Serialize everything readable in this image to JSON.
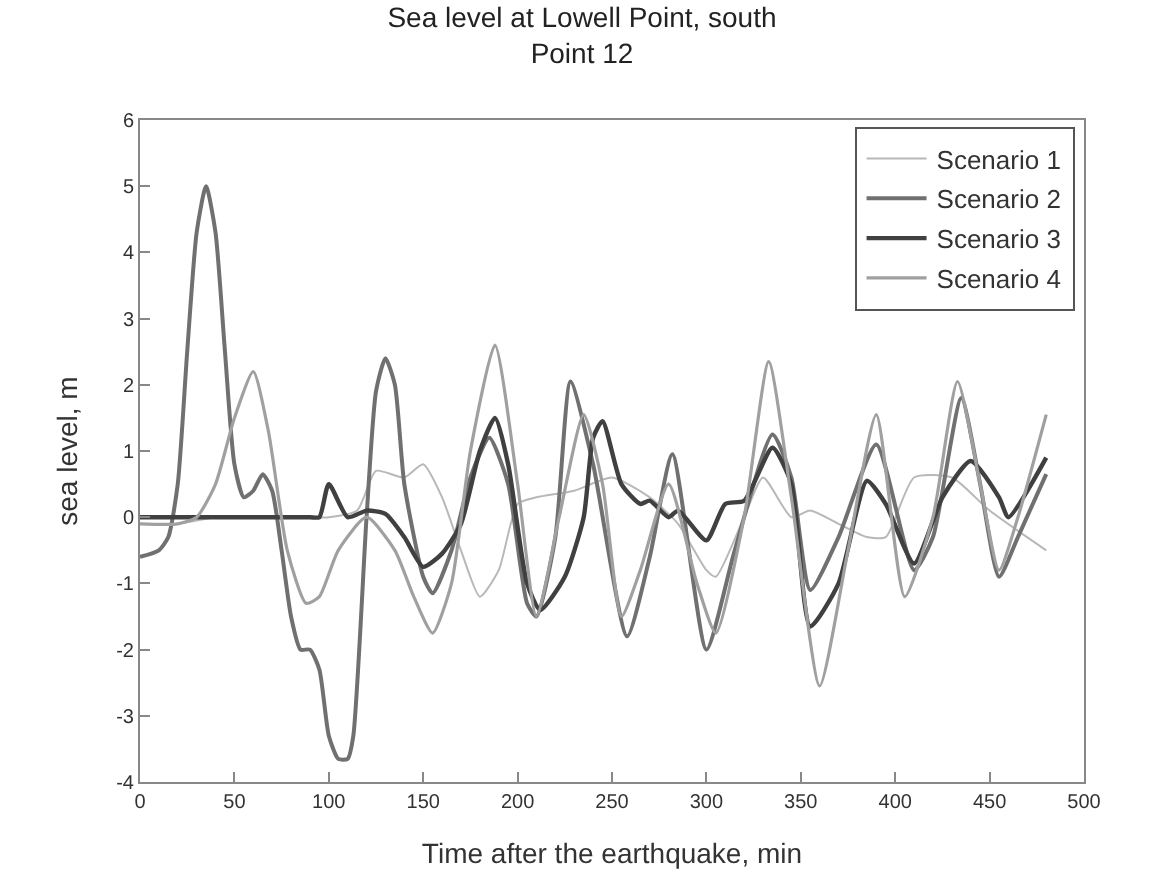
{
  "chart_data": {
    "type": "line",
    "title": "Sea level at Lowell Point, south",
    "subtitle": "Point 12",
    "xlabel": "Time after the earthquake, min",
    "ylabel": "sea level, m",
    "xlim": [
      0,
      500
    ],
    "xticks": [
      0,
      50,
      100,
      150,
      200,
      250,
      300,
      350,
      400,
      450,
      500
    ],
    "ylim": [
      -4,
      6
    ],
    "yticks": [
      -4,
      -3,
      -2,
      -1,
      0,
      1,
      2,
      3,
      4,
      5,
      6
    ],
    "legend": "top right",
    "marker": "none",
    "line_style": "solid",
    "series": [
      {
        "name": "Scenario 1",
        "color": "#b8b8b8",
        "x": [
          0,
          20,
          40,
          60,
          80,
          100,
          115,
          125,
          140,
          150,
          160,
          170,
          180,
          190,
          200,
          210,
          230,
          250,
          270,
          285,
          300,
          305,
          320,
          330,
          345,
          355,
          370,
          385,
          395,
          410,
          430,
          450,
          480
        ],
        "values": [
          -0.1,
          -0.1,
          0,
          0,
          0,
          0,
          0.1,
          0.7,
          0.6,
          0.8,
          0.3,
          -0.5,
          -1.2,
          -0.8,
          0.2,
          0.3,
          0.4,
          0.6,
          0.3,
          -0.1,
          -0.8,
          -0.9,
          0,
          0.6,
          0,
          0.1,
          -0.1,
          -0.3,
          -0.3,
          0.6,
          0.6,
          0.1,
          -0.5
        ]
      },
      {
        "name": "Scenario 2",
        "color": "#707070",
        "x": [
          0,
          10,
          15,
          20,
          25,
          30,
          35,
          40,
          45,
          50,
          55,
          60,
          65,
          70,
          75,
          80,
          85,
          90,
          95,
          100,
          105,
          110,
          113,
          120,
          125,
          130,
          135,
          140,
          150,
          155,
          165,
          175,
          185,
          195,
          205,
          210,
          220,
          228,
          240,
          258,
          270,
          282,
          300,
          315,
          335,
          345,
          355,
          370,
          390,
          410,
          420,
          435,
          445,
          455,
          465,
          480
        ],
        "values": [
          -0.6,
          -0.5,
          -0.3,
          0.5,
          2.5,
          4.3,
          5.0,
          4.3,
          2.5,
          0.8,
          0.3,
          0.4,
          0.65,
          0.4,
          -0.5,
          -1.5,
          -2.0,
          -2.0,
          -2.3,
          -3.3,
          -3.65,
          -3.65,
          -3.3,
          0,
          1.9,
          2.4,
          2.0,
          0.5,
          -0.9,
          -1.15,
          -0.5,
          0.6,
          1.2,
          0.5,
          -1.3,
          -1.5,
          -0.3,
          2.05,
          0.8,
          -1.8,
          -0.6,
          0.95,
          -2.0,
          -0.5,
          1.25,
          0.6,
          -1.1,
          -0.3,
          1.1,
          -0.8,
          -0.3,
          1.8,
          0.5,
          -0.9,
          -0.3,
          0.65
        ]
      },
      {
        "name": "Scenario 3",
        "color": "#404040",
        "x": [
          0,
          30,
          60,
          90,
          95,
          100,
          110,
          120,
          130,
          140,
          150,
          160,
          170,
          180,
          188,
          195,
          205,
          212,
          225,
          235,
          240,
          245,
          255,
          265,
          270,
          280,
          285,
          300,
          310,
          320,
          335,
          345,
          355,
          370,
          385,
          395,
          410,
          425,
          440,
          455,
          460,
          480
        ],
        "values": [
          0,
          0,
          0,
          0,
          0,
          0.5,
          0,
          0.1,
          0.05,
          -0.3,
          -0.75,
          -0.55,
          -0.1,
          1.0,
          1.5,
          0.8,
          -1.0,
          -1.4,
          -0.9,
          0,
          1.2,
          1.45,
          0.5,
          0.2,
          0.25,
          0,
          0.1,
          -0.35,
          0.2,
          0.25,
          1.05,
          0.5,
          -1.65,
          -1.0,
          0.55,
          0.2,
          -0.7,
          0.3,
          0.85,
          0.3,
          0,
          0.9
        ]
      },
      {
        "name": "Scenario 4",
        "color": "#a0a0a0",
        "x": [
          0,
          20,
          30,
          40,
          50,
          60,
          68,
          78,
          88,
          95,
          105,
          120,
          135,
          145,
          155,
          165,
          175,
          188,
          200,
          210,
          222,
          235,
          245,
          255,
          265,
          280,
          295,
          305,
          320,
          333,
          345,
          360,
          375,
          390,
          405,
          420,
          433,
          445,
          455,
          465,
          480
        ],
        "values": [
          -0.1,
          -0.1,
          0,
          0.5,
          1.5,
          2.2,
          1.3,
          -0.5,
          -1.3,
          -1.2,
          -0.5,
          0,
          -0.5,
          -1.2,
          -1.75,
          -1.0,
          1.0,
          2.6,
          0.5,
          -1.5,
          0,
          1.55,
          0.5,
          -1.5,
          -0.8,
          0.5,
          -1.0,
          -1.75,
          0,
          2.35,
          0.3,
          -2.55,
          -0.5,
          1.55,
          -1.2,
          0,
          2.05,
          0.5,
          -0.8,
          0,
          1.55
        ]
      }
    ]
  }
}
